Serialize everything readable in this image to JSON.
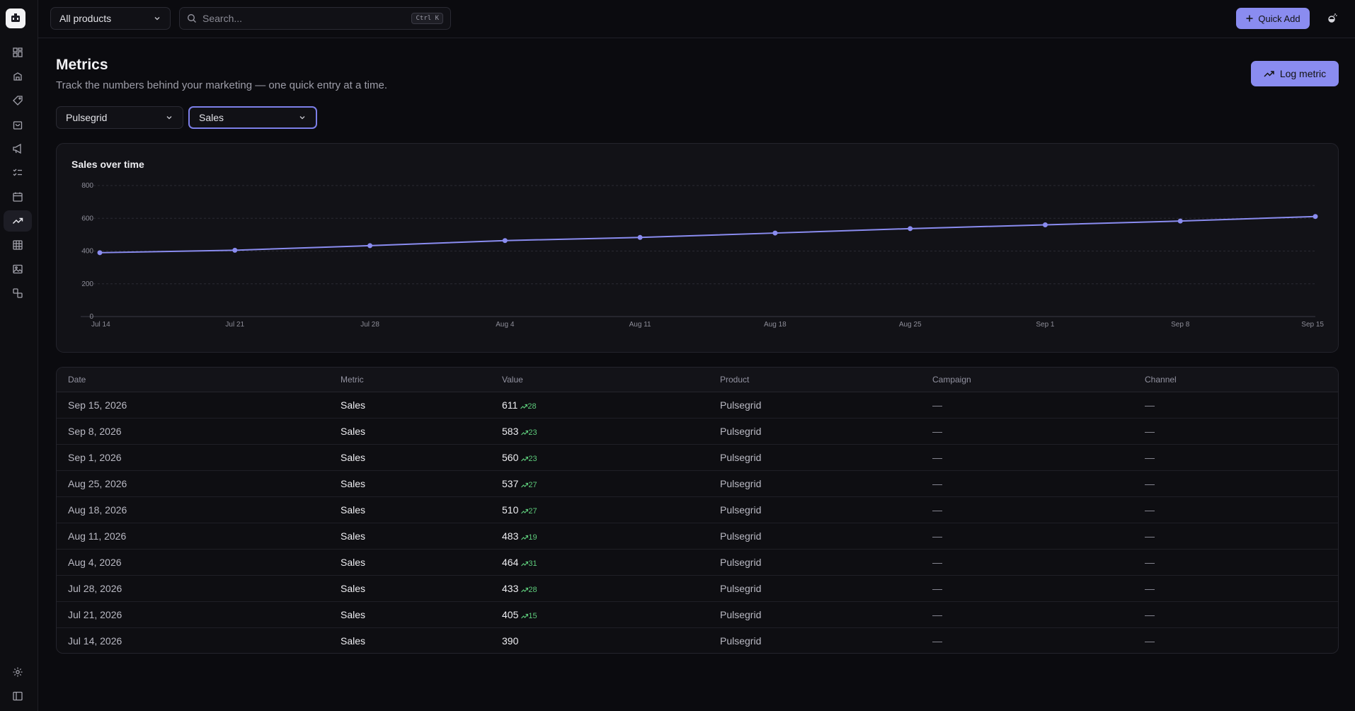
{
  "topbar": {
    "product_select": "All products",
    "search_placeholder": "Search...",
    "search_shortcut": "Ctrl K",
    "quick_add_label": "Quick Add"
  },
  "sidebar": {
    "items": [
      {
        "icon": "dashboard-icon"
      },
      {
        "icon": "products-icon"
      },
      {
        "icon": "tag-icon"
      },
      {
        "icon": "shopping-bag-icon"
      },
      {
        "icon": "megaphone-icon"
      },
      {
        "icon": "checklist-icon"
      },
      {
        "icon": "calendar-icon"
      },
      {
        "icon": "trend-icon",
        "active": true
      },
      {
        "icon": "table-icon"
      },
      {
        "icon": "image-icon"
      },
      {
        "icon": "shapes-icon"
      }
    ],
    "bottom": [
      {
        "icon": "settings-icon"
      },
      {
        "icon": "sidebar-toggle-icon"
      }
    ]
  },
  "page": {
    "title": "Metrics",
    "subtitle": "Track the numbers behind your marketing — one quick entry at a time.",
    "log_metric_label": "Log metric",
    "filter_product": "Pulsegrid",
    "filter_metric": "Sales"
  },
  "chart_data": {
    "type": "line",
    "title": "Sales over time",
    "categories": [
      "Jul 14",
      "Jul 21",
      "Jul 28",
      "Aug 4",
      "Aug 11",
      "Aug 18",
      "Aug 25",
      "Sep 1",
      "Sep 8",
      "Sep 15"
    ],
    "values": [
      390,
      405,
      433,
      464,
      483,
      510,
      537,
      560,
      583,
      611
    ],
    "ylim": [
      0,
      800
    ],
    "yticks": [
      0,
      200,
      400,
      600,
      800
    ],
    "grid": true,
    "color": "#8a8cf0"
  },
  "table": {
    "headers": [
      "Date",
      "Metric",
      "Value",
      "Product",
      "Campaign",
      "Channel"
    ],
    "rows": [
      {
        "date": "Sep 15, 2026",
        "metric": "Sales",
        "value": "611",
        "delta": "28",
        "product": "Pulsegrid",
        "campaign": "—",
        "channel": "—"
      },
      {
        "date": "Sep 8, 2026",
        "metric": "Sales",
        "value": "583",
        "delta": "23",
        "product": "Pulsegrid",
        "campaign": "—",
        "channel": "—"
      },
      {
        "date": "Sep 1, 2026",
        "metric": "Sales",
        "value": "560",
        "delta": "23",
        "product": "Pulsegrid",
        "campaign": "—",
        "channel": "—"
      },
      {
        "date": "Aug 25, 2026",
        "metric": "Sales",
        "value": "537",
        "delta": "27",
        "product": "Pulsegrid",
        "campaign": "—",
        "channel": "—"
      },
      {
        "date": "Aug 18, 2026",
        "metric": "Sales",
        "value": "510",
        "delta": "27",
        "product": "Pulsegrid",
        "campaign": "—",
        "channel": "—"
      },
      {
        "date": "Aug 11, 2026",
        "metric": "Sales",
        "value": "483",
        "delta": "19",
        "product": "Pulsegrid",
        "campaign": "—",
        "channel": "—"
      },
      {
        "date": "Aug 4, 2026",
        "metric": "Sales",
        "value": "464",
        "delta": "31",
        "product": "Pulsegrid",
        "campaign": "—",
        "channel": "—"
      },
      {
        "date": "Jul 28, 2026",
        "metric": "Sales",
        "value": "433",
        "delta": "28",
        "product": "Pulsegrid",
        "campaign": "—",
        "channel": "—"
      },
      {
        "date": "Jul 21, 2026",
        "metric": "Sales",
        "value": "405",
        "delta": "15",
        "product": "Pulsegrid",
        "campaign": "—",
        "channel": "—"
      },
      {
        "date": "Jul 14, 2026",
        "metric": "Sales",
        "value": "390",
        "delta": "",
        "product": "Pulsegrid",
        "campaign": "—",
        "channel": "—"
      }
    ]
  },
  "colors": {
    "accent": "#8a8cf0",
    "positive": "#5cc97a",
    "background": "#0b0b0f"
  }
}
